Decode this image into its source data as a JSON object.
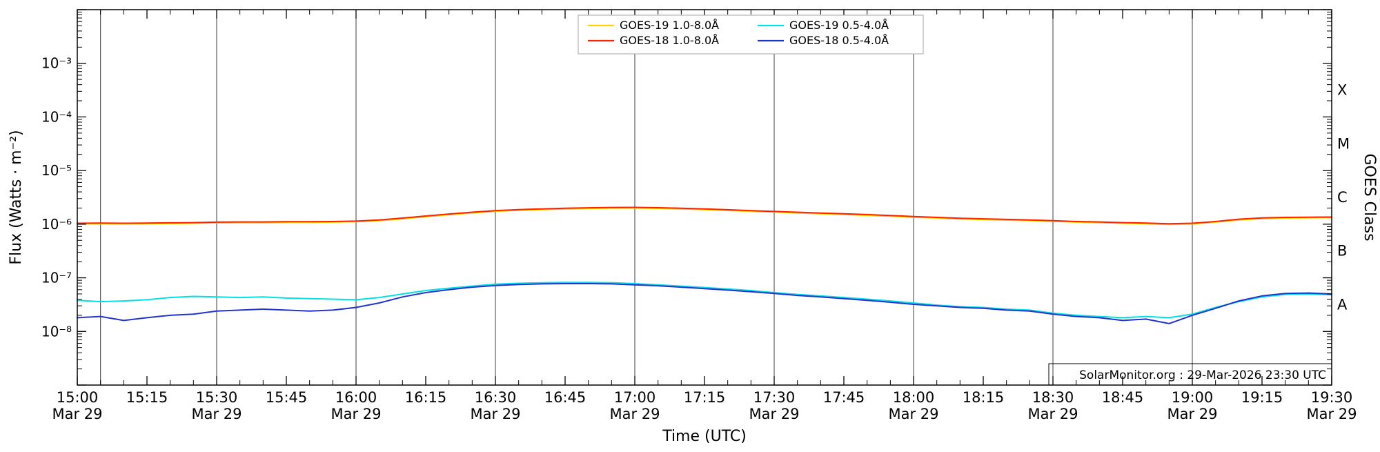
{
  "chart_data": {
    "type": "line",
    "title": "",
    "xlabel": "Time (UTC)",
    "ylabel": "Flux (Watts · m⁻²)",
    "ylabel_right": "GOES Class",
    "annotation": "SolarMonitor.org : 29-Mar-2026 23:30 UTC",
    "y_range_exp": [
      -9,
      -2
    ],
    "grid_on": true,
    "grid_times_min": [
      5,
      30,
      60,
      90,
      120,
      150,
      180,
      210,
      240
    ],
    "legend_position": "top-center",
    "y_ticks": [
      {
        "exp": -3,
        "label": "10⁻³"
      },
      {
        "exp": -4,
        "label": "10⁻⁴"
      },
      {
        "exp": -5,
        "label": "10⁻⁵"
      },
      {
        "exp": -6,
        "label": "10⁻⁶"
      },
      {
        "exp": -7,
        "label": "10⁻⁷"
      },
      {
        "exp": -8,
        "label": "10⁻⁸"
      }
    ],
    "goes_classes": [
      {
        "label": "X",
        "exp": -3.5
      },
      {
        "label": "M",
        "exp": -4.5
      },
      {
        "label": "C",
        "exp": -5.5
      },
      {
        "label": "B",
        "exp": -6.5
      },
      {
        "label": "A",
        "exp": -7.5
      }
    ],
    "x_ticks": [
      {
        "t": 0,
        "time": "15:00",
        "date": "Mar 29"
      },
      {
        "t": 15,
        "time": "15:15",
        "date": ""
      },
      {
        "t": 30,
        "time": "15:30",
        "date": "Mar 29"
      },
      {
        "t": 45,
        "time": "15:45",
        "date": ""
      },
      {
        "t": 60,
        "time": "16:00",
        "date": "Mar 29"
      },
      {
        "t": 75,
        "time": "16:15",
        "date": ""
      },
      {
        "t": 90,
        "time": "16:30",
        "date": "Mar 29"
      },
      {
        "t": 105,
        "time": "16:45",
        "date": ""
      },
      {
        "t": 120,
        "time": "17:00",
        "date": "Mar 29"
      },
      {
        "t": 135,
        "time": "17:15",
        "date": ""
      },
      {
        "t": 150,
        "time": "17:30",
        "date": "Mar 29"
      },
      {
        "t": 165,
        "time": "17:45",
        "date": ""
      },
      {
        "t": 180,
        "time": "18:00",
        "date": "Mar 29"
      },
      {
        "t": 195,
        "time": "18:15",
        "date": ""
      },
      {
        "t": 210,
        "time": "18:30",
        "date": "Mar 29"
      },
      {
        "t": 225,
        "time": "18:45",
        "date": ""
      },
      {
        "t": 240,
        "time": "19:00",
        "date": "Mar 29"
      },
      {
        "t": 255,
        "time": "19:15",
        "date": ""
      },
      {
        "t": 270,
        "time": "19:30",
        "date": "Mar 29"
      }
    ],
    "x_minutes": [
      0,
      5,
      10,
      15,
      20,
      25,
      30,
      35,
      40,
      45,
      50,
      55,
      60,
      65,
      70,
      75,
      80,
      85,
      90,
      95,
      100,
      105,
      110,
      115,
      120,
      125,
      130,
      135,
      140,
      145,
      150,
      155,
      160,
      165,
      170,
      175,
      180,
      185,
      190,
      195,
      200,
      205,
      210,
      215,
      220,
      225,
      230,
      235,
      240,
      245,
      250,
      255,
      260,
      265,
      270
    ],
    "series": [
      {
        "name": "GOES-19 1.0-8.0Å",
        "color": "#ffd300",
        "values": [
          1.01e-06,
          1.02e-06,
          1.01e-06,
          1.02e-06,
          1.03e-06,
          1.04e-06,
          1.06e-06,
          1.07e-06,
          1.07e-06,
          1.08e-06,
          1.08e-06,
          1.09e-06,
          1.11e-06,
          1.16e-06,
          1.26e-06,
          1.38e-06,
          1.5e-06,
          1.62e-06,
          1.74e-06,
          1.81e-06,
          1.87e-06,
          1.92e-06,
          1.96e-06,
          1.99e-06,
          2e-06,
          1.97e-06,
          1.92e-06,
          1.87e-06,
          1.8e-06,
          1.74e-06,
          1.68e-06,
          1.62e-06,
          1.56e-06,
          1.51e-06,
          1.46e-06,
          1.41e-06,
          1.35e-06,
          1.3e-06,
          1.25e-06,
          1.22e-06,
          1.19e-06,
          1.16e-06,
          1.13e-06,
          1.09e-06,
          1.07e-06,
          1.04e-06,
          1.02e-06,
          9.9e-07,
          1.01e-06,
          1.09e-06,
          1.2e-06,
          1.27e-06,
          1.3e-06,
          1.31e-06,
          1.32e-06
        ]
      },
      {
        "name": "GOES-18 1.0-8.0Å",
        "color": "#ff2200",
        "values": [
          1.04e-06,
          1.05e-06,
          1.04e-06,
          1.05e-06,
          1.06e-06,
          1.07e-06,
          1.09e-06,
          1.1e-06,
          1.1e-06,
          1.11e-06,
          1.11e-06,
          1.12e-06,
          1.14e-06,
          1.2e-06,
          1.3e-06,
          1.42e-06,
          1.55e-06,
          1.67e-06,
          1.79e-06,
          1.87e-06,
          1.93e-06,
          1.98e-06,
          2.02e-06,
          2.05e-06,
          2.06e-06,
          2.03e-06,
          1.98e-06,
          1.93e-06,
          1.86e-06,
          1.79e-06,
          1.73e-06,
          1.67e-06,
          1.61e-06,
          1.56e-06,
          1.51e-06,
          1.45e-06,
          1.39e-06,
          1.34e-06,
          1.29e-06,
          1.26e-06,
          1.23e-06,
          1.2e-06,
          1.16e-06,
          1.12e-06,
          1.1e-06,
          1.07e-06,
          1.05e-06,
          1.02e-06,
          1.04e-06,
          1.12e-06,
          1.24e-06,
          1.31e-06,
          1.34e-06,
          1.35e-06,
          1.36e-06
        ]
      },
      {
        "name": "GOES-19 0.5-4.0Å",
        "color": "#00e0e6",
        "values": [
          3.8e-08,
          3.6e-08,
          3.7e-08,
          3.9e-08,
          4.3e-08,
          4.5e-08,
          4.4e-08,
          4.3e-08,
          4.4e-08,
          4.2e-08,
          4.1e-08,
          4e-08,
          3.9e-08,
          4.3e-08,
          5e-08,
          5.8e-08,
          6.4e-08,
          7e-08,
          7.6e-08,
          7.9e-08,
          8.1e-08,
          8.2e-08,
          8.2e-08,
          8.1e-08,
          7.8e-08,
          7.4e-08,
          7e-08,
          6.6e-08,
          6.2e-08,
          5.8e-08,
          5.3e-08,
          4.9e-08,
          4.6e-08,
          4.3e-08,
          4e-08,
          3.7e-08,
          3.4e-08,
          3.1e-08,
          2.9e-08,
          2.8e-08,
          2.6e-08,
          2.5e-08,
          2.2e-08,
          2e-08,
          1.9e-08,
          1.8e-08,
          1.9e-08,
          1.8e-08,
          2.1e-08,
          2.8e-08,
          3.6e-08,
          4.4e-08,
          4.9e-08,
          5e-08,
          4.8e-08
        ]
      },
      {
        "name": "GOES-18 0.5-4.0Å",
        "color": "#2233cc",
        "values": [
          1.8e-08,
          1.9e-08,
          1.6e-08,
          1.8e-08,
          2e-08,
          2.1e-08,
          2.4e-08,
          2.5e-08,
          2.6e-08,
          2.5e-08,
          2.4e-08,
          2.5e-08,
          2.8e-08,
          3.4e-08,
          4.4e-08,
          5.3e-08,
          6e-08,
          6.7e-08,
          7.2e-08,
          7.5e-08,
          7.7e-08,
          7.8e-08,
          7.8e-08,
          7.7e-08,
          7.4e-08,
          7.1e-08,
          6.7e-08,
          6.3e-08,
          5.9e-08,
          5.5e-08,
          5.1e-08,
          4.7e-08,
          4.4e-08,
          4.1e-08,
          3.8e-08,
          3.5e-08,
          3.2e-08,
          3e-08,
          2.8e-08,
          2.7e-08,
          2.5e-08,
          2.4e-08,
          2.1e-08,
          1.9e-08,
          1.8e-08,
          1.6e-08,
          1.7e-08,
          1.4e-08,
          2e-08,
          2.7e-08,
          3.7e-08,
          4.6e-08,
          5.1e-08,
          5.2e-08,
          5e-08
        ]
      }
    ]
  }
}
